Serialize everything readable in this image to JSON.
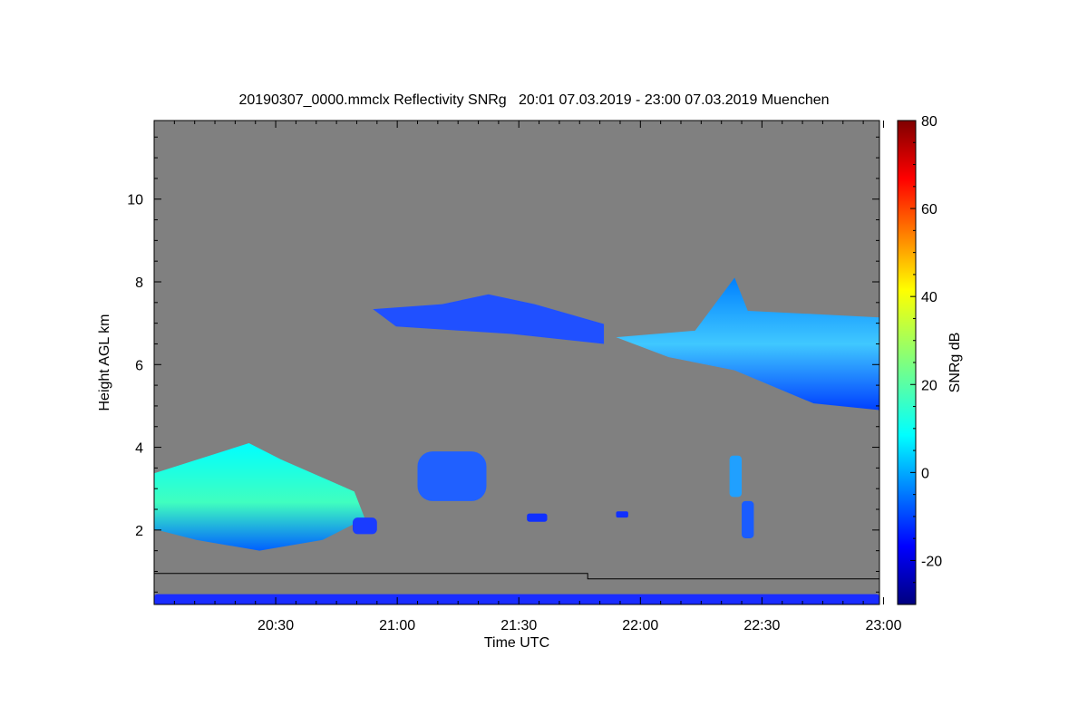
{
  "chart_data": {
    "type": "heatmap",
    "title": "20190307_0000.mmclx Reflectivity SNRg   20:01 07.03.2019 - 23:00 07.03.2019 Muenchen",
    "xlabel": "Time UTC",
    "ylabel": "Height AGL km",
    "xlim": [
      "20:01",
      "23:00"
    ],
    "ylim": [
      0.2,
      11.9
    ],
    "x_ticks": [
      "20:30",
      "21:00",
      "21:30",
      "22:00",
      "22:30",
      "23:00"
    ],
    "y_ticks": [
      "2",
      "4",
      "6",
      "8",
      "10"
    ],
    "x_tick_values": [
      30,
      60,
      90,
      120,
      150,
      180
    ],
    "y_tick_values": [
      2,
      4,
      6,
      8,
      10
    ],
    "colorbar": {
      "label": "SNRg dB",
      "range": [
        -30,
        80
      ],
      "ticks": [
        "-20",
        "0",
        "20",
        "40",
        "60",
        "80"
      ],
      "tick_values": [
        -20,
        0,
        20,
        40,
        60,
        80
      ]
    },
    "background_color": "#808080",
    "echo_regions": [
      {
        "start": "20:01",
        "end": "20:53",
        "bottom_km": 1.5,
        "top_km": 4.1,
        "peak_snr_db": 25
      },
      {
        "start": "20:50",
        "end": "20:56",
        "bottom_km": 1.9,
        "top_km": 2.3,
        "peak_snr_db": -10
      },
      {
        "start": "21:06",
        "end": "21:23",
        "bottom_km": 2.7,
        "top_km": 3.9,
        "peak_snr_db": -5
      },
      {
        "start": "21:33",
        "end": "21:38",
        "bottom_km": 2.2,
        "top_km": 2.4,
        "peak_snr_db": -15
      },
      {
        "start": "21:55",
        "end": "21:58",
        "bottom_km": 2.3,
        "top_km": 2.45,
        "peak_snr_db": -15
      },
      {
        "start": "20:55",
        "end": "21:52",
        "bottom_km": 6.5,
        "top_km": 7.7,
        "peak_snr_db": -10
      },
      {
        "start": "21:55",
        "end": "23:00",
        "bottom_km": 4.9,
        "top_km": 8.1,
        "peak_snr_db": 10
      },
      {
        "start": "22:23",
        "end": "22:26",
        "bottom_km": 2.8,
        "top_km": 3.8,
        "peak_snr_db": 0
      },
      {
        "start": "22:26",
        "end": "22:29",
        "bottom_km": 1.8,
        "top_km": 2.7,
        "peak_snr_db": -10
      },
      {
        "start": "20:01",
        "end": "23:00",
        "bottom_km": 0.2,
        "top_km": 0.45,
        "peak_snr_db": -15
      }
    ],
    "overlay_line": [
      {
        "time": "20:01",
        "height_km": 0.95
      },
      {
        "time": "21:48",
        "height_km": 0.95
      },
      {
        "time": "21:48",
        "height_km": 0.82
      },
      {
        "time": "23:00",
        "height_km": 0.82
      }
    ]
  }
}
